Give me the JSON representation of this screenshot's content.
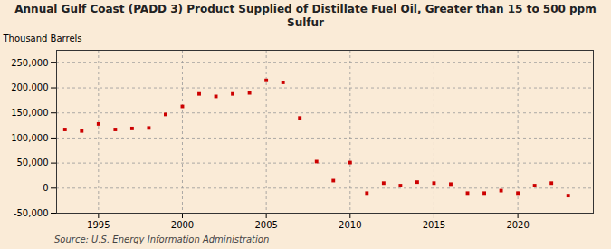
{
  "chart_data": {
    "type": "scatter",
    "title": "Annual Gulf Coast (PADD 3) Product Supplied of Distillate Fuel Oil, Greater than 15 to 500 ppm Sulfur",
    "ylabel": "Thousand Barrels",
    "source": "Source: U.S. Energy Information Administration",
    "x": [
      1993,
      1994,
      1995,
      1996,
      1997,
      1998,
      1999,
      2000,
      2001,
      2002,
      2003,
      2004,
      2005,
      2006,
      2007,
      2008,
      2009,
      2010,
      2011,
      2012,
      2013,
      2014,
      2015,
      2016,
      2017,
      2018,
      2019,
      2020,
      2021,
      2022,
      2023
    ],
    "values": [
      117000,
      114000,
      128000,
      117000,
      119000,
      120000,
      147000,
      163000,
      188000,
      183000,
      188000,
      190000,
      215000,
      211000,
      140000,
      53000,
      15000,
      51000,
      -10000,
      10000,
      5000,
      12000,
      10000,
      8000,
      -10000,
      -10000,
      -5000,
      -10000,
      5000,
      10000,
      -15000
    ],
    "color": "#cc0000",
    "marker": "square",
    "xlim": [
      1992.5,
      2024.5
    ],
    "xticks": [
      1995,
      2000,
      2005,
      2010,
      2015,
      2020
    ],
    "ylim": [
      -50000,
      275000
    ],
    "yticks": [
      {
        "value": -50000,
        "label": "-50,000"
      },
      0,
      {
        "value": 50000,
        "label": "50,000"
      },
      {
        "value": 100000,
        "label": "100,000"
      },
      {
        "value": 150000,
        "label": "150,000"
      },
      {
        "value": 200000,
        "label": "200,000"
      },
      {
        "value": 250000,
        "label": "250,000"
      }
    ],
    "grid": true
  }
}
